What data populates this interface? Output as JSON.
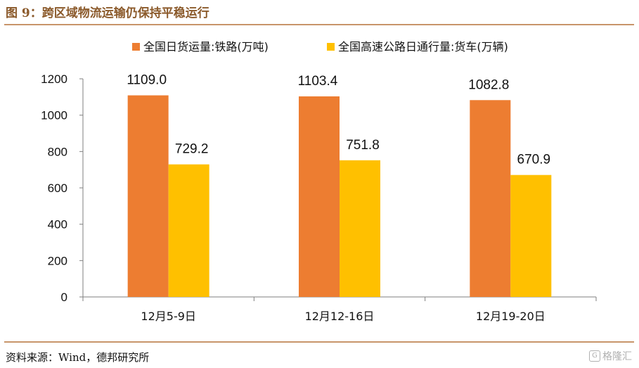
{
  "figure": {
    "title": "图 9：跨区域物流运输仍保持平稳运行",
    "source": "资料来源：Wind，德邦研究所",
    "watermark_text": "格隆汇",
    "watermark_icon": "G"
  },
  "colors": {
    "series_rail": "#ED7D31",
    "series_highway": "#FFC000",
    "accent_rule": "#C8956A",
    "title_text": "#8B5A2B"
  },
  "chart_data": {
    "type": "bar",
    "categories": [
      "12月5-9日",
      "12月12-16日",
      "12月19-20日"
    ],
    "series": [
      {
        "name": "全国日货运量:铁路(万吨)",
        "values": [
          1109.0,
          1103.4,
          1082.8
        ]
      },
      {
        "name": "全国高速公路日通行量:货车(万辆)",
        "values": [
          729.2,
          751.8,
          670.9
        ]
      }
    ],
    "data_labels": [
      [
        "1109.0",
        "1103.4",
        "1082.8"
      ],
      [
        "729.2",
        "751.8",
        "670.9"
      ]
    ],
    "yticks": [
      "0",
      "200",
      "400",
      "600",
      "800",
      "1000",
      "1200"
    ],
    "ylim": [
      0,
      1200
    ],
    "legend_position": "top",
    "grid": false
  }
}
